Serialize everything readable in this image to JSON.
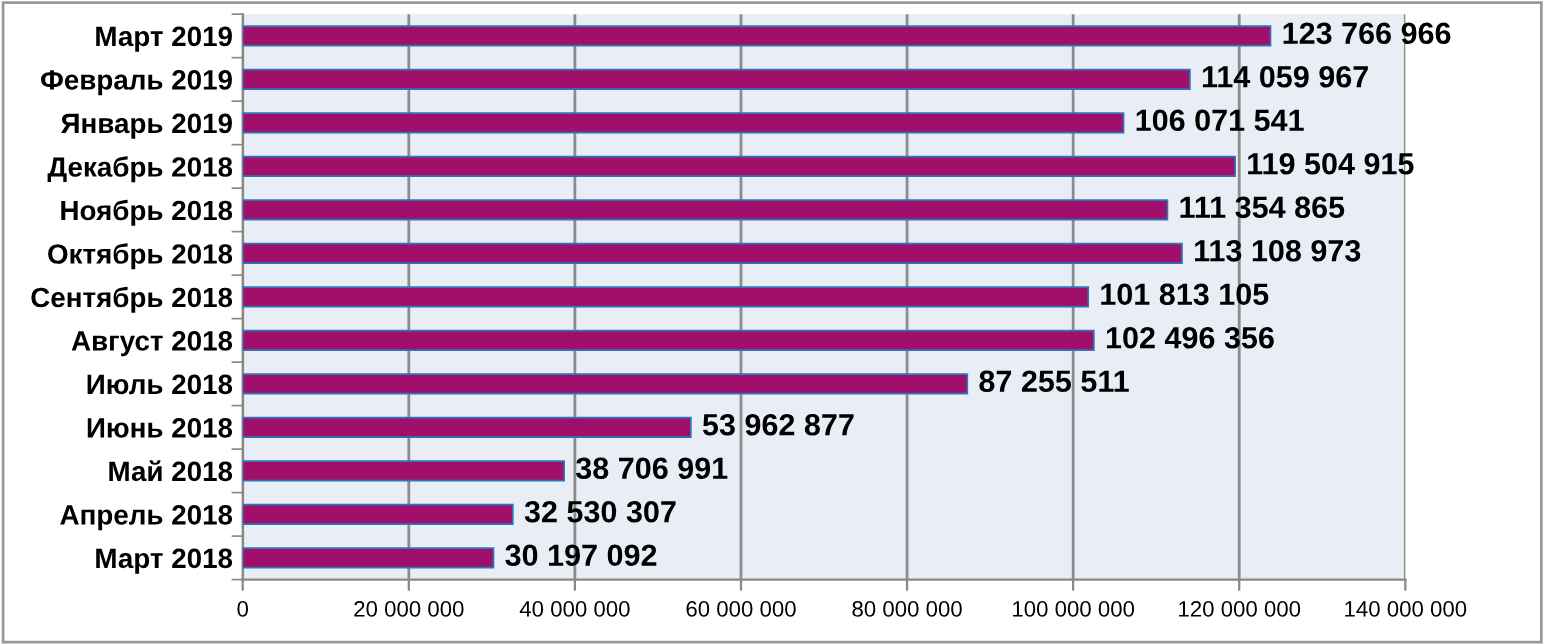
{
  "chart_data": {
    "type": "bar",
    "orientation": "horizontal",
    "categories": [
      "Март 2019",
      "Февраль 2019",
      "Январь 2019",
      "Декабрь 2018",
      "Ноябрь 2018",
      "Октябрь 2018",
      "Сентябрь 2018",
      "Август 2018",
      "Июль 2018",
      "Июнь 2018",
      "Май 2018",
      "Апрель 2018",
      "Март 2018"
    ],
    "values": [
      123766966,
      114059967,
      106071541,
      119504915,
      111354865,
      113108973,
      101813105,
      102496356,
      87255511,
      53962877,
      38706991,
      32530307,
      30197092
    ],
    "value_labels": [
      "123 766 966",
      "114 059 967",
      "106 071 541",
      "119 504 915",
      "111 354 865",
      "113 108 973",
      "101 813 105",
      "102 496 356",
      "87 255 511",
      "53 962 877",
      "38 706 991",
      "32 530 307",
      "30 197 092"
    ],
    "color": "#a0106a",
    "xlim": [
      0,
      140000000
    ],
    "xticks": [
      0,
      {
        "value": 20000000,
        "label": "20 000 000"
      },
      {
        "value": 40000000,
        "label": "40 000 000"
      },
      {
        "value": 60000000,
        "label": "60 000 000"
      },
      {
        "value": 80000000,
        "label": "80 000 000"
      },
      {
        "value": 100000000,
        "label": "100 000 000"
      },
      {
        "value": 120000000,
        "label": "120 000 000"
      },
      {
        "value": 140000000,
        "label": "140 000 000"
      }
    ],
    "grid": "x",
    "legend": false
  }
}
